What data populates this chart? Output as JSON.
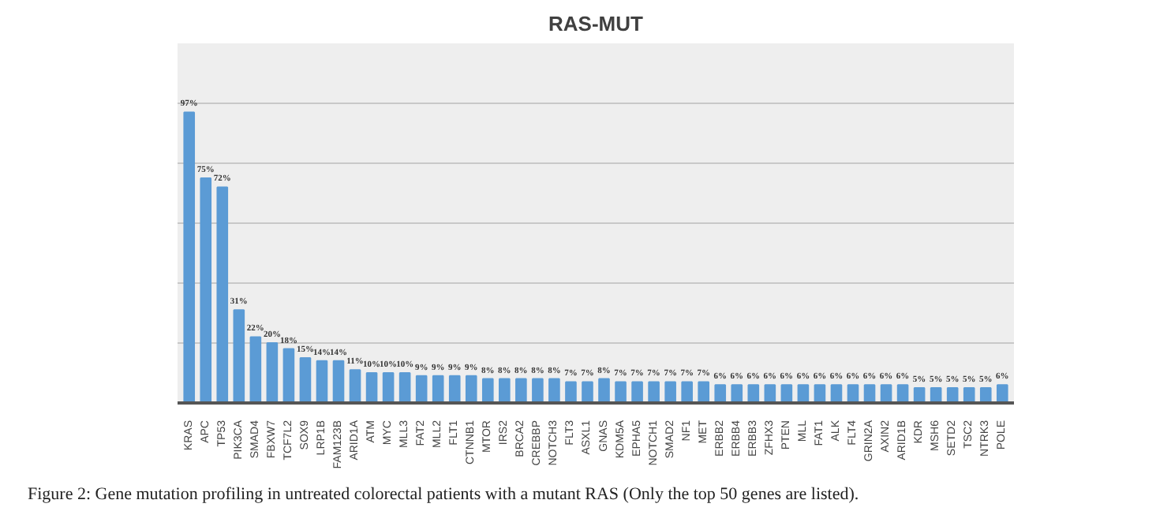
{
  "chart_data": {
    "type": "bar",
    "title": "RAS-MUT",
    "categories": [
      "KRAS",
      "APC",
      "TP53",
      "PIK3CA",
      "SMAD4",
      "FBXW7",
      "TCF7L2",
      "SOX9",
      "LRP1B",
      "FAM123B",
      "ARID1A",
      "ATM",
      "MYC",
      "MLL3",
      "FAT2",
      "MLL2",
      "FLT1",
      "CTNNB1",
      "MTOR",
      "IRS2",
      "BRCA2",
      "CREBBP",
      "NOTCH3",
      "FLT3",
      "ASXL1",
      "GNAS",
      "KDM5A",
      "EPHA5",
      "NOTCH1",
      "SMAD2",
      "NF1",
      "MET",
      "ERBB2",
      "ERBB4",
      "ERBB3",
      "ZFHX3",
      "PTEN",
      "MLL",
      "FAT1",
      "ALK",
      "FLT4",
      "GRIN2A",
      "AXIN2",
      "ARID1B",
      "KDR",
      "MSH6",
      "SETD2",
      "TSC2",
      "NTRK3",
      "POLE"
    ],
    "values": [
      97,
      75,
      72,
      31,
      22,
      20,
      18,
      15,
      14,
      14,
      11,
      10,
      10,
      10,
      9,
      9,
      9,
      9,
      8,
      8,
      8,
      8,
      8,
      7,
      7,
      8,
      7,
      7,
      7,
      7,
      7,
      7,
      6,
      6,
      6,
      6,
      6,
      6,
      6,
      6,
      6,
      6,
      6,
      6,
      5,
      5,
      5,
      5,
      5,
      6
    ],
    "value_labels": [
      "97%",
      "75%",
      "72%",
      "31%",
      "22%",
      "20%",
      "18%",
      "15%",
      "14%",
      "14%",
      "11%",
      "10%",
      "10%",
      "10%",
      "9%",
      "9%",
      "9%",
      "9%",
      "8%",
      "8%",
      "8%",
      "8%",
      "8%",
      "7%",
      "7%",
      "8%",
      "7%",
      "7%",
      "7%",
      "7%",
      "7%",
      "7%",
      "6%",
      "6%",
      "6%",
      "6%",
      "6%",
      "6%",
      "6%",
      "6%",
      "6%",
      "6%",
      "6%",
      "6%",
      "5%",
      "5%",
      "5%",
      "5%",
      "5%",
      "6%"
    ],
    "color": "#5b9bd5",
    "ylim": [
      0,
      120
    ],
    "yticks": [
      {
        "value": 0,
        "label": null
      },
      {
        "value": 20,
        "label": null
      },
      {
        "value": 40,
        "label": null
      },
      {
        "value": 60,
        "label": null
      },
      {
        "value": 80,
        "label": null
      },
      {
        "value": 100,
        "label": null
      },
      {
        "value": 120,
        "label": null
      }
    ],
    "tick_labels": "x",
    "grid": "y",
    "annotations": [
      "Figure 2: Gene mutation profiling in untreated colorectal patients with a mutant RAS (Only the top 50 genes are listed)."
    ]
  }
}
